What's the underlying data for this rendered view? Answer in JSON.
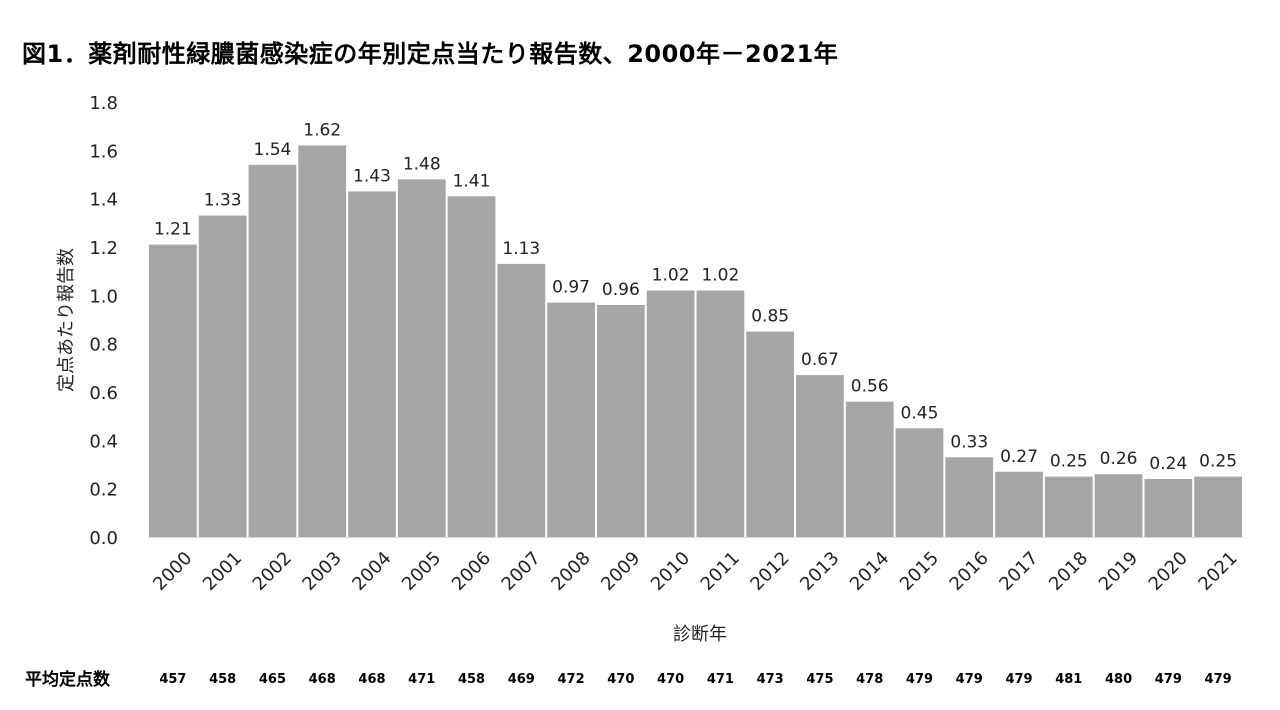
{
  "title": "図1．薬剤耐性緑膿菌感染症の年別定点当たり報告数、2000年－2021年",
  "chart_data": {
    "type": "bar",
    "title": "図1．薬剤耐性緑膿菌感染症の年別定点当たり報告数、2000年－2021年",
    "xlabel": "診断年",
    "ylabel": "定点あたり報告数",
    "ylim": [
      0,
      1.8
    ],
    "yticks": [
      "0.0",
      "0.2",
      "0.4",
      "0.6",
      "0.8",
      "1.0",
      "1.2",
      "1.4",
      "1.6",
      "1.8"
    ],
    "categories": [
      "2000",
      "2001",
      "2002",
      "2003",
      "2004",
      "2005",
      "2006",
      "2007",
      "2008",
      "2009",
      "2010",
      "2011",
      "2012",
      "2013",
      "2014",
      "2015",
      "2016",
      "2017",
      "2018",
      "2019",
      "2020",
      "2021"
    ],
    "values": [
      1.21,
      1.33,
      1.54,
      1.62,
      1.43,
      1.48,
      1.41,
      1.13,
      0.97,
      0.96,
      1.02,
      1.02,
      0.85,
      0.67,
      0.56,
      0.45,
      0.33,
      0.27,
      0.25,
      0.26,
      0.24,
      0.25
    ],
    "value_labels": [
      "1.21",
      "1.33",
      "1.54",
      "1.62",
      "1.43",
      "1.48",
      "1.41",
      "1.13",
      "0.97",
      "0.96",
      "1.02",
      "1.02",
      "0.85",
      "0.67",
      "0.56",
      "0.45",
      "0.33",
      "0.27",
      "0.25",
      "0.26",
      "0.24",
      "0.25"
    ],
    "bar_color": "#a6a6a6",
    "grid": false,
    "table": {
      "label": "平均定点数",
      "values": [
        "457",
        "458",
        "465",
        "468",
        "468",
        "471",
        "458",
        "469",
        "472",
        "470",
        "470",
        "471",
        "473",
        "475",
        "478",
        "479",
        "479",
        "479",
        "481",
        "480",
        "479",
        "479"
      ]
    }
  }
}
